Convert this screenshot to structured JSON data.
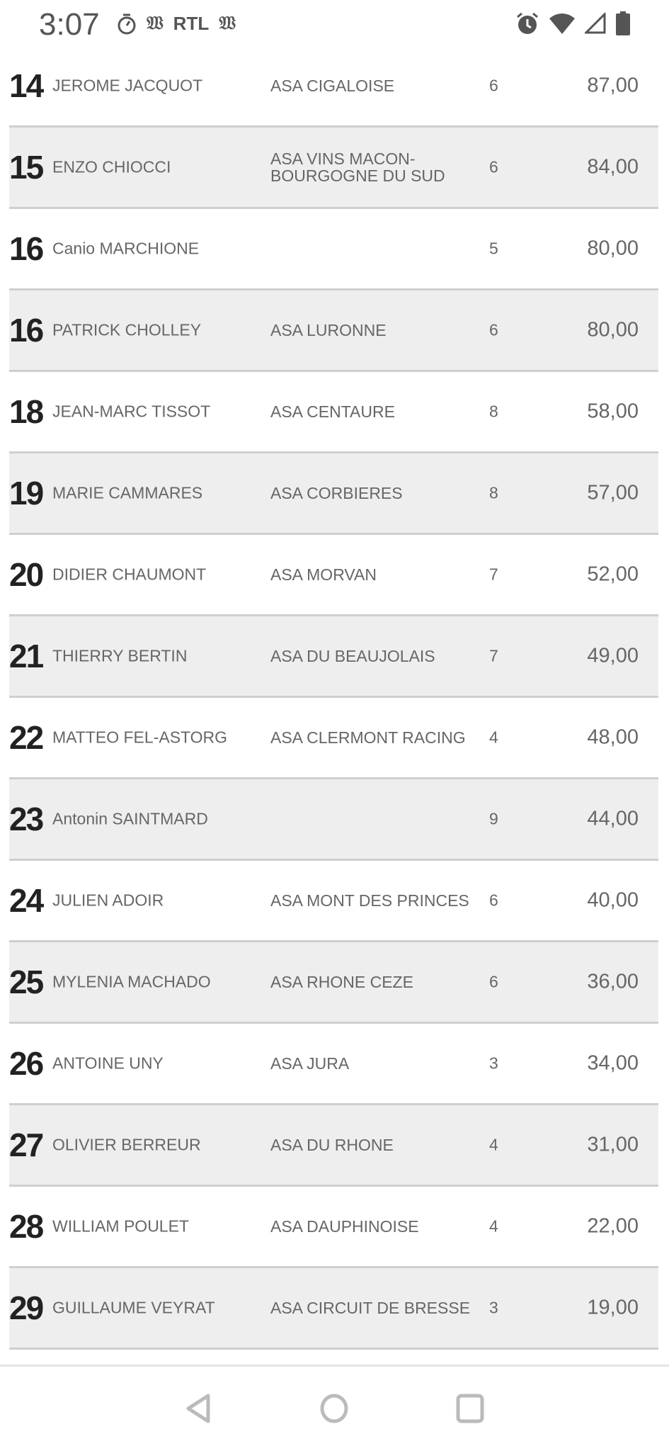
{
  "status_bar": {
    "time": "3:07",
    "left_icons": [
      "timer-icon",
      "news-icon",
      "RTL",
      "news-icon"
    ],
    "right_icons": [
      "alarm-icon",
      "wifi-icon",
      "signal-icon",
      "battery-icon"
    ],
    "rtl_label": "RTL"
  },
  "rows": [
    {
      "rank": "14",
      "name": "JEROME JACQUOT",
      "club": "ASA CIGALOISE",
      "count": "6",
      "points": "87,00"
    },
    {
      "rank": "15",
      "name": "ENZO CHIOCCI",
      "club": "ASA VINS MACON-\nBOURGOGNE DU SUD",
      "count": "6",
      "points": "84,00"
    },
    {
      "rank": "16",
      "name": "Canio MARCHIONE",
      "club": "",
      "count": "5",
      "points": "80,00"
    },
    {
      "rank": "16",
      "name": "PATRICK CHOLLEY",
      "club": "ASA LURONNE",
      "count": "6",
      "points": "80,00"
    },
    {
      "rank": "18",
      "name": "JEAN-MARC TISSOT",
      "club": "ASA CENTAURE",
      "count": "8",
      "points": "58,00"
    },
    {
      "rank": "19",
      "name": "MARIE CAMMARES",
      "club": "ASA CORBIERES",
      "count": "8",
      "points": "57,00"
    },
    {
      "rank": "20",
      "name": "DIDIER CHAUMONT",
      "club": "ASA MORVAN",
      "count": "7",
      "points": "52,00"
    },
    {
      "rank": "21",
      "name": "THIERRY BERTIN",
      "club": "ASA DU BEAUJOLAIS",
      "count": "7",
      "points": "49,00"
    },
    {
      "rank": "22",
      "name": "MATTEO FEL-ASTORG",
      "club": "ASA CLERMONT RACING",
      "count": "4",
      "points": "48,00"
    },
    {
      "rank": "23",
      "name": "Antonin SAINTMARD",
      "club": "",
      "count": "9",
      "points": "44,00"
    },
    {
      "rank": "24",
      "name": "JULIEN ADOIR",
      "club": "ASA MONT DES PRINCES",
      "count": "6",
      "points": "40,00"
    },
    {
      "rank": "25",
      "name": "MYLENIA MACHADO",
      "club": "ASA RHONE CEZE",
      "count": "6",
      "points": "36,00"
    },
    {
      "rank": "26",
      "name": "ANTOINE UNY",
      "club": "ASA JURA",
      "count": "3",
      "points": "34,00"
    },
    {
      "rank": "27",
      "name": "OLIVIER BERREUR",
      "club": "ASA DU RHONE",
      "count": "4",
      "points": "31,00"
    },
    {
      "rank": "28",
      "name": "WILLIAM POULET",
      "club": "ASA DAUPHINOISE",
      "count": "4",
      "points": "22,00"
    },
    {
      "rank": "29",
      "name": "GUILLAUME VEYRAT",
      "club": "ASA CIRCUIT DE BRESSE",
      "count": "3",
      "points": "19,00"
    }
  ],
  "colors": {
    "row_alt": "#eeeeee",
    "separator": "#cfcfcf",
    "rank": "#222222",
    "text": "#666666"
  },
  "nav": [
    "back-icon",
    "home-icon",
    "recents-icon"
  ]
}
